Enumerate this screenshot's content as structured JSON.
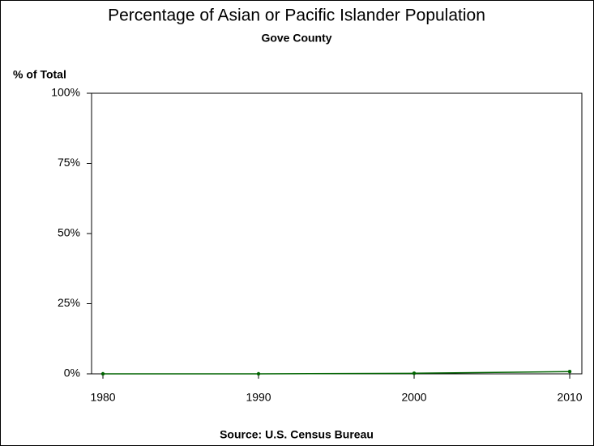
{
  "chart_data": {
    "type": "line",
    "title": "Percentage of Asian or Pacific Islander Population",
    "subtitle": "Gove County",
    "y_label": "% of Total",
    "source": "Source: U.S. Census Bureau",
    "x": [
      1980,
      1990,
      2000,
      2010
    ],
    "series": [
      {
        "color": "#006400",
        "values": [
          0,
          0,
          0.2,
          0.8
        ]
      }
    ],
    "xlim": [
      1979.27,
      2010.78
    ],
    "xticks": [
      1980,
      1990,
      2000,
      2010
    ],
    "ylim": [
      0,
      100
    ],
    "yticks": [
      {
        "value": 0,
        "label": "0%"
      },
      {
        "value": 25,
        "label": "25%"
      },
      {
        "value": 50,
        "label": "50%"
      },
      {
        "value": 75,
        "label": "75%"
      },
      {
        "value": 100,
        "label": "100%"
      }
    ],
    "grid": false
  }
}
